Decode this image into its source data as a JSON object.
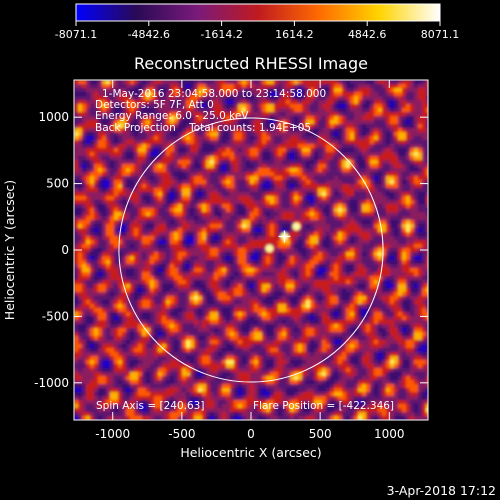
{
  "colorbar": {
    "ticks": [
      "-8071.1",
      "-4842.6",
      "-1614.2",
      "1614.2",
      "4842.6",
      "8071.1"
    ],
    "range": [
      -8071.1,
      8071.1
    ],
    "palette": [
      "#0000ff",
      "#2a0a55",
      "#7a1a7a",
      "#c01a20",
      "#ff6a00",
      "#ffd400",
      "#ffffff"
    ]
  },
  "chart_data": {
    "type": "heatmap",
    "title": "Reconstructed RHESSI Image",
    "xlabel": "Heliocentric X (arcsec)",
    "ylabel": "Heliocentric Y (arcsec)",
    "xlim": [
      -1280,
      1280
    ],
    "ylim": [
      -1280,
      1280
    ],
    "xticks": [
      -1000,
      -500,
      0,
      500,
      1000
    ],
    "yticks": [
      -1000,
      -500,
      0,
      500,
      1000
    ],
    "xtick_labels": [
      "-1000",
      "-500",
      "0",
      "500",
      "1000"
    ],
    "ytick_labels": [
      "-1000",
      "-500",
      "0",
      "500",
      "1000"
    ],
    "solar_limb": {
      "center": [
        0,
        0
      ],
      "radius_arcsec": 955
    },
    "flare_marker": [
      242,
      102
    ],
    "annotations": [
      "1-May-2016 23:04:58.000 to 23:14:58.000",
      "Detectors: 5F 7F, Att 0",
      "Energy Range: 6.0 - 25.0 keV",
      "Back Projection    Total counts: 1.94E+05"
    ],
    "spin_axis": "Spin Axis = [240.63]",
    "flare_position": "Flare Position = [-422.346]"
  },
  "footer": {
    "date": "3-Apr-2018 17:12"
  }
}
